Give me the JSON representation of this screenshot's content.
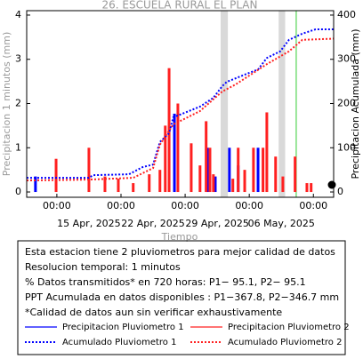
{
  "chart_data": {
    "type": "bar-line",
    "title": "26. ESCUELA RURAL EL PLAN",
    "xlabel": "Tiempo",
    "ylabel": "Precipitacion 1 minutos (mm)",
    "y2label": "Precipitacion Acumulada (mm)",
    "xlim": [
      "2025-04-08T17:00",
      "2025-05-12T05:00"
    ],
    "xticks": [
      {
        "value": "2025-04-12T00:00",
        "label": "00:00"
      },
      {
        "value": "2025-04-19T00:00",
        "label": "00:00"
      },
      {
        "value": "2025-04-26T00:00",
        "label": "00:00"
      },
      {
        "value": "2025-05-03T00:00",
        "label": "00:00"
      },
      {
        "value": "2025-05-10T00:00",
        "label": "00:00"
      }
    ],
    "xdate_labels": [
      {
        "value": "2025-04-15T12:00",
        "label": "15 Apr, 2025"
      },
      {
        "value": "2025-04-22T12:00",
        "label": "22 Apr, 2025"
      },
      {
        "value": "2025-04-29T12:00",
        "label": "29 Apr, 2025"
      },
      {
        "value": "2025-05-06T12:00",
        "label": "06 May, 2025"
      }
    ],
    "ylim": [
      -0.12,
      4.1
    ],
    "yticks": [
      0,
      1,
      2,
      3,
      4
    ],
    "y2lim": [
      -12,
      410
    ],
    "y2ticks": [
      0,
      100,
      200,
      300,
      400
    ],
    "shaded_ranges": [
      [
        "2025-04-29T21:00",
        "2025-04-30T16:00"
      ],
      [
        "2025-05-06T05:00",
        "2025-05-06T22:00"
      ]
    ],
    "vline": {
      "x": "2025-05-08T03:00",
      "color": "#33cc33"
    },
    "series": [
      {
        "name": "Precipitacion Pluviometro 1",
        "kind": "bar",
        "color": "#0000ff",
        "x": [
          "2025-04-09T16:00",
          "2025-04-24T20:00",
          "2025-04-28T10:00",
          "2025-04-29T07:00",
          "2025-04-30T20:00",
          "2025-05-01T19:00",
          "2025-05-03T23:00"
        ],
        "values": [
          0.35,
          1.77,
          1.0,
          0.35,
          1.0,
          0.6,
          1.0
        ]
      },
      {
        "name": "Precipitacion Pluviometro 2",
        "kind": "bar",
        "color": "#ff2020",
        "x": [
          "2025-04-11T22:00",
          "2025-04-15T12:00",
          "2025-04-17T06:00",
          "2025-04-18T17:00",
          "2025-04-20T08:00",
          "2025-04-22T02:00",
          "2025-04-23T06:00",
          "2025-04-23T20:00",
          "2025-04-24T06:00",
          "2025-04-25T05:00",
          "2025-04-26T16:00",
          "2025-04-27T15:00",
          "2025-04-28T07:00",
          "2025-04-28T17:00",
          "2025-04-29T02:00",
          "2025-05-01T05:00",
          "2025-05-01T19:00",
          "2025-05-02T12:00",
          "2025-05-03T11:00",
          "2025-05-04T12:00",
          "2025-05-04T22:00",
          "2025-05-05T21:00",
          "2025-05-06T16:00",
          "2025-05-08T00:00",
          "2025-05-09T07:00",
          "2025-05-09T18:00"
        ],
        "values": [
          0.75,
          1.0,
          0.35,
          0.3,
          0.2,
          0.4,
          0.5,
          1.5,
          2.8,
          2.0,
          1.1,
          0.6,
          1.6,
          1.0,
          0.4,
          0.3,
          1.0,
          0.5,
          1.0,
          1.0,
          1.8,
          0.8,
          0.35,
          0.8,
          0.2,
          0.2
        ]
      },
      {
        "name": "Acumulado Pluviometro 1",
        "kind": "line",
        "axis": "y2",
        "color": "#0000ff",
        "x": [
          "2025-04-08T17:00",
          "2025-04-15T12:00",
          "2025-04-15T23:00",
          "2025-04-19T21:00",
          "2025-04-21T08:00",
          "2025-04-22T12:00",
          "2025-04-23T06:00",
          "2025-04-24T06:00",
          "2025-04-24T17:00",
          "2025-04-25T17:00",
          "2025-04-27T15:00",
          "2025-04-29T02:00",
          "2025-04-30T01:00",
          "2025-04-30T13:00",
          "2025-05-01T12:00",
          "2025-05-02T23:00",
          "2025-05-03T23:00",
          "2025-05-04T22:00",
          "2025-05-06T09:00",
          "2025-05-07T08:00",
          "2025-05-08T19:00",
          "2025-05-10T06:00",
          "2025-05-12T05:00"
        ],
        "values": [
          32,
          32,
          38,
          40,
          56,
          62,
          113,
          133,
          169,
          177,
          193,
          213,
          239,
          249,
          257,
          269,
          277,
          303,
          318,
          344,
          358,
          367.8,
          367.8
        ]
      },
      {
        "name": "Acumulado Pluviometro 2",
        "kind": "line",
        "axis": "y2",
        "color": "#ff2020",
        "x": [
          "2025-04-08T17:00",
          "2025-04-15T12:00",
          "2025-04-20T08:00",
          "2025-04-22T12:00",
          "2025-04-23T06:00",
          "2025-04-24T17:00",
          "2025-04-25T17:00",
          "2025-04-27T15:00",
          "2025-04-30T01:00",
          "2025-05-01T12:00",
          "2025-05-04T22:00",
          "2025-05-07T08:00",
          "2025-05-08T19:00",
          "2025-05-12T05:00"
        ],
        "values": [
          26,
          28,
          32,
          54,
          107,
          153,
          163,
          183,
          227,
          243,
          289,
          318,
          344,
          346.7
        ]
      }
    ]
  },
  "info_box": {
    "lines": [
      "Esta estacion tiene 2 pluviometros para mejor calidad de datos",
      "Resolucion temporal: 1 minutos",
      "% Datos transmitidos* en 720 horas: P1− 95.1, P2− 95.1",
      "PPT Acumulada en datos disponibles : P1−367.8, P2−346.7 mm",
      "*Calidad de datos aun sin verificar exhaustivamente"
    ]
  }
}
